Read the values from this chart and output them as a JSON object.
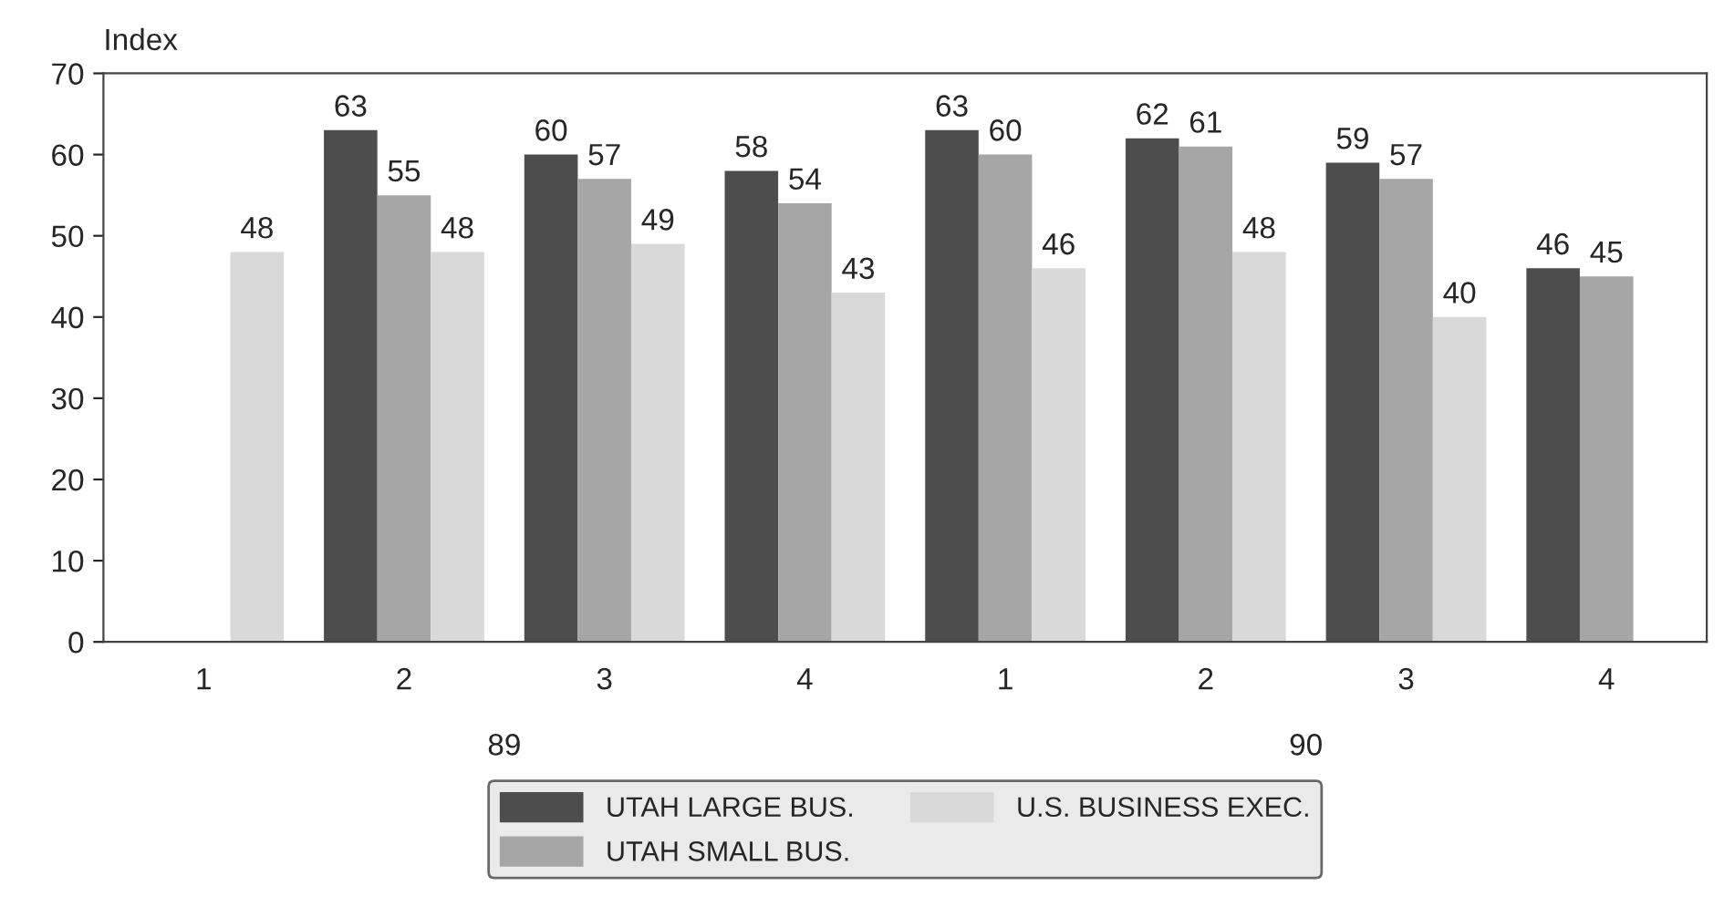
{
  "chart_data": {
    "type": "bar",
    "ylabel": "Index",
    "categories": [
      "1",
      "2",
      "3",
      "4",
      "1",
      "2",
      "3",
      "4"
    ],
    "series": [
      {
        "name": "UTAH LARGE BUS.",
        "color": "#4d4d4d",
        "values": [
          null,
          63,
          60,
          58,
          63,
          62,
          59,
          46
        ]
      },
      {
        "name": "UTAH SMALL BUS.",
        "color": "#a6a6a6",
        "values": [
          null,
          55,
          57,
          54,
          60,
          61,
          57,
          45
        ]
      },
      {
        "name": "U.S. BUSINESS EXEC.",
        "color": "#d9d9d9",
        "values": [
          48,
          48,
          49,
          43,
          46,
          48,
          40,
          null
        ]
      }
    ],
    "annotations": [
      "89",
      "90"
    ],
    "ylim": [
      0,
      70
    ],
    "yticks": [
      0,
      10,
      20,
      30,
      40,
      50,
      60,
      70
    ],
    "data_labels": true,
    "grid": false,
    "legend": "bottom"
  }
}
